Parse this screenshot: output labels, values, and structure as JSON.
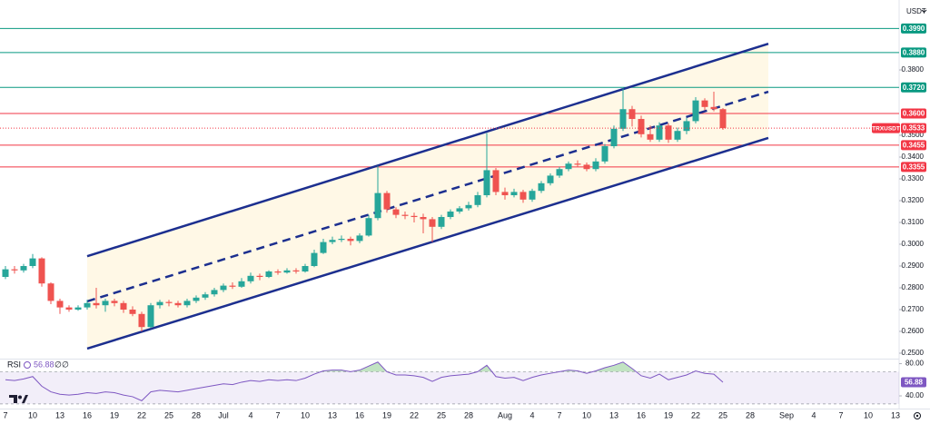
{
  "chart_data": {
    "type": "candlestick",
    "currency": "USDT",
    "up_color": "#26a69a",
    "down_color": "#ef5350",
    "categories": [
      "7",
      null,
      null,
      "10",
      null,
      null,
      "13",
      null,
      null,
      "16",
      null,
      null,
      "19",
      null,
      null,
      "22",
      null,
      null,
      "25",
      null,
      null,
      "28",
      null,
      null,
      "Jul",
      null,
      null,
      "4",
      null,
      null,
      "7",
      null,
      null,
      "10",
      null,
      null,
      "13",
      null,
      null,
      "16",
      null,
      null,
      "19",
      null,
      null,
      "22",
      null,
      null,
      "25",
      null,
      null,
      "28",
      null,
      null,
      null,
      "Aug",
      null,
      null,
      "4",
      null,
      null,
      "7",
      null,
      null,
      "10",
      null,
      null,
      "13",
      null,
      null,
      "16",
      null,
      null,
      "19",
      null,
      null,
      "22",
      null,
      null,
      "25",
      null,
      null,
      "28",
      null,
      null,
      null,
      "Sep",
      null,
      null,
      "4",
      null,
      null,
      "7",
      null,
      null,
      "10",
      null,
      null,
      "13"
    ],
    "open": [
      0.285,
      0.2885,
      0.288,
      0.29,
      0.2935,
      0.282,
      0.274,
      0.271,
      0.27,
      0.271,
      0.273,
      0.272,
      0.274,
      0.273,
      0.27,
      0.268,
      0.262,
      0.272,
      0.2735,
      0.273,
      0.272,
      0.274,
      0.2755,
      0.277,
      0.279,
      0.281,
      0.2805,
      0.283,
      0.2855,
      0.285,
      0.2875,
      0.287,
      0.288,
      0.2875,
      0.29,
      0.296,
      0.301,
      0.302,
      0.3025,
      0.3015,
      0.304,
      0.312,
      0.3235,
      0.316,
      0.3135,
      0.313,
      0.3125,
      0.3115,
      0.308,
      0.3125,
      0.315,
      0.3165,
      0.318,
      0.3225,
      0.334,
      0.324,
      0.3225,
      0.324,
      0.3205,
      0.3245,
      0.328,
      0.3315,
      0.3345,
      0.337,
      0.3365,
      0.3345,
      0.338,
      0.345,
      0.353,
      0.362,
      0.3575,
      0.3505,
      0.348,
      0.3545,
      0.348,
      0.352,
      0.3565,
      0.366,
      0.363,
      0.362,
      null,
      null,
      null,
      null,
      null,
      null,
      null,
      null,
      null,
      null,
      null,
      null,
      null,
      null,
      null,
      null,
      null,
      null,
      null
    ],
    "high": [
      0.29,
      0.29,
      0.291,
      0.2955,
      0.294,
      0.2825,
      0.275,
      0.272,
      0.272,
      0.2745,
      0.28,
      0.275,
      0.275,
      0.274,
      0.2715,
      0.269,
      0.273,
      0.2745,
      0.2745,
      0.274,
      0.275,
      0.2765,
      0.278,
      0.28,
      0.282,
      0.2825,
      0.2845,
      0.287,
      0.2865,
      0.288,
      0.2885,
      0.289,
      0.289,
      0.291,
      0.2975,
      0.3025,
      0.3035,
      0.304,
      0.3035,
      0.305,
      0.3135,
      0.336,
      0.3245,
      0.317,
      0.315,
      0.3145,
      0.314,
      0.3125,
      0.3135,
      0.316,
      0.3175,
      0.3195,
      0.324,
      0.351,
      0.335,
      0.326,
      0.3255,
      0.325,
      0.3255,
      0.329,
      0.3325,
      0.3355,
      0.338,
      0.3385,
      0.3375,
      0.3395,
      0.346,
      0.3545,
      0.3715,
      0.3635,
      0.359,
      0.3545,
      0.356,
      0.3555,
      0.3535,
      0.358,
      0.3675,
      0.367,
      0.37,
      0.3625,
      null,
      null,
      null,
      null,
      null,
      null,
      null,
      null,
      null,
      null,
      null,
      null,
      null,
      null,
      null,
      null,
      null,
      null,
      null
    ],
    "low": [
      0.284,
      0.2865,
      0.287,
      0.289,
      0.2805,
      0.2725,
      0.268,
      0.269,
      0.2695,
      0.27,
      0.2705,
      0.269,
      0.2715,
      0.2685,
      0.267,
      0.26,
      0.2615,
      0.2705,
      0.2715,
      0.271,
      0.271,
      0.273,
      0.2745,
      0.276,
      0.278,
      0.2795,
      0.28,
      0.282,
      0.2835,
      0.2845,
      0.286,
      0.2865,
      0.2865,
      0.287,
      0.2895,
      0.2955,
      0.3,
      0.301,
      0.2995,
      0.3005,
      0.3035,
      0.311,
      0.3145,
      0.312,
      0.3115,
      0.31,
      0.305,
      0.301,
      0.307,
      0.3115,
      0.314,
      0.3155,
      0.317,
      0.3215,
      0.3225,
      0.3205,
      0.3215,
      0.319,
      0.3195,
      0.3235,
      0.327,
      0.3305,
      0.3335,
      0.3355,
      0.3335,
      0.3335,
      0.337,
      0.344,
      0.352,
      0.354,
      0.349,
      0.347,
      0.347,
      0.3465,
      0.347,
      0.3505,
      0.3555,
      0.3615,
      0.361,
      0.3525,
      null,
      null,
      null,
      null,
      null,
      null,
      null,
      null,
      null,
      null,
      null,
      null,
      null,
      null,
      null,
      null,
      null,
      null,
      null
    ],
    "close": [
      0.2885,
      0.288,
      0.29,
      0.2935,
      0.282,
      0.274,
      0.271,
      0.27,
      0.271,
      0.273,
      0.272,
      0.274,
      0.273,
      0.27,
      0.268,
      0.262,
      0.272,
      0.2735,
      0.273,
      0.272,
      0.274,
      0.2755,
      0.277,
      0.279,
      0.281,
      0.2805,
      0.283,
      0.2855,
      0.285,
      0.2875,
      0.287,
      0.288,
      0.2875,
      0.29,
      0.296,
      0.301,
      0.302,
      0.3025,
      0.3015,
      0.304,
      0.312,
      0.3235,
      0.316,
      0.3135,
      0.313,
      0.3125,
      0.3115,
      0.308,
      0.3125,
      0.315,
      0.3165,
      0.318,
      0.3225,
      0.334,
      0.324,
      0.3225,
      0.324,
      0.3205,
      0.3245,
      0.328,
      0.3315,
      0.3345,
      0.337,
      0.3365,
      0.3345,
      0.338,
      0.345,
      0.353,
      0.362,
      0.3575,
      0.3505,
      0.348,
      0.3545,
      0.348,
      0.352,
      0.3565,
      0.366,
      0.363,
      0.362,
      0.3533,
      null,
      null,
      null,
      null,
      null,
      null,
      null,
      null,
      null,
      null,
      null,
      null,
      null,
      null,
      null,
      null,
      null,
      null,
      null
    ],
    "ylim": [
      0.2475,
      0.4121
    ],
    "yticks": [
      {
        "value": 0.25,
        "label": "0.2500"
      },
      {
        "value": 0.26,
        "label": "0.2600"
      },
      {
        "value": 0.27,
        "label": "0.2700"
      },
      {
        "value": 0.28,
        "label": "0.2800"
      },
      {
        "value": 0.29,
        "label": "0.2900"
      },
      {
        "value": 0.3,
        "label": "0.3000"
      },
      {
        "value": 0.31,
        "label": "0.3100"
      },
      {
        "value": 0.32,
        "label": "0.3200"
      },
      {
        "value": 0.33,
        "label": "0.3300"
      },
      {
        "value": 0.34,
        "label": "0.3400"
      },
      {
        "value": 0.35,
        "label": "0.3500"
      },
      {
        "value": 0.38,
        "label": "0.3800"
      }
    ],
    "levels": [
      {
        "value": 0.399,
        "label": "0.3990",
        "color": "#089981"
      },
      {
        "value": 0.388,
        "label": "0.3880",
        "color": "#089981"
      },
      {
        "value": 0.372,
        "label": "0.3720",
        "color": "#089981"
      },
      {
        "value": 0.36,
        "label": "0.3600",
        "color": "#f23645"
      },
      {
        "value": 0.3455,
        "label": "0.3455",
        "color": "#f23645"
      },
      {
        "value": 0.3355,
        "label": "0.3355",
        "color": "#f23645"
      }
    ],
    "last_price": {
      "name": "TRXUSDT",
      "value": 0.3533,
      "label": "0.3533",
      "color": "#f23645"
    },
    "channel": {
      "color": "#1c2f8f",
      "fill": "#fff3d6",
      "from": 9,
      "to": 84,
      "upper": [
        0.2945,
        0.392
      ],
      "middle": [
        0.2738,
        0.37
      ],
      "lower": [
        0.2521,
        0.3488
      ]
    },
    "rsi": {
      "name": "RSI",
      "color": "#7e57c2",
      "flags": [
        "∅",
        "∅"
      ],
      "ylim": [
        22,
        84
      ],
      "yticks": [
        {
          "value": 80,
          "label": "80.00"
        },
        {
          "value": 40,
          "label": "40.00"
        }
      ],
      "band": [
        30,
        70
      ],
      "values": [
        60,
        59,
        61,
        64,
        52,
        45,
        42,
        41,
        42,
        44,
        43,
        45,
        44,
        41,
        39,
        34,
        45,
        47,
        46,
        45,
        47,
        49,
        51,
        53,
        55,
        54,
        57,
        59,
        58,
        60,
        59,
        60,
        59,
        62,
        67,
        71,
        72,
        72,
        70,
        72,
        77,
        82,
        70,
        66,
        66,
        65,
        63,
        58,
        63,
        65,
        66,
        67,
        70,
        78,
        64,
        62,
        63,
        59,
        63,
        66,
        68,
        70,
        72,
        71,
        68,
        71,
        75,
        78,
        82,
        74,
        65,
        62,
        67,
        60,
        63,
        66,
        71,
        68,
        67,
        56.88,
        null,
        null,
        null,
        null,
        null,
        null,
        null,
        null,
        null,
        null,
        null,
        null,
        null,
        null,
        null,
        null,
        null,
        null,
        null
      ]
    }
  }
}
